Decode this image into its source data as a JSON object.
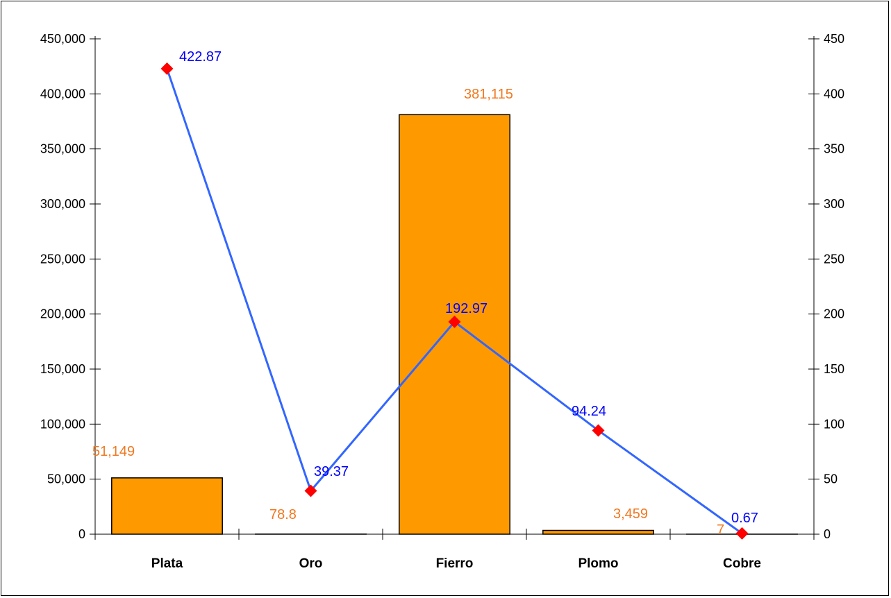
{
  "chart_data": {
    "type": "bar",
    "categories": [
      "Plata",
      "Oro",
      "Fierro",
      "Plomo",
      "Cobre"
    ],
    "series": [
      {
        "type": "bar",
        "axis": "left",
        "values": [
          51149,
          78.8,
          381115,
          3459,
          7
        ],
        "labels": [
          "51,149",
          "78.8",
          "381,115",
          "3,459",
          "7"
        ],
        "color": "#FF9900",
        "label_color": "#F07820"
      },
      {
        "type": "line",
        "axis": "right",
        "values": [
          422.87,
          39.37,
          192.97,
          94.24,
          0.67
        ],
        "labels": [
          "422.87",
          "39.37",
          "192.97",
          "94.24",
          "0.67"
        ],
        "color": "#3366FF",
        "marker_color": "#FF0000",
        "label_color": "#0000FF"
      }
    ],
    "y_left": {
      "ylim": [
        0,
        450000
      ],
      "ticks": [
        "0",
        "50,000",
        "100,000",
        "150,000",
        "200,000",
        "250,000",
        "300,000",
        "350,000",
        "400,000",
        "450,000"
      ]
    },
    "y_right": {
      "ylim": [
        0,
        450
      ],
      "ticks": [
        "0",
        "50",
        "100",
        "150",
        "200",
        "250",
        "300",
        "350",
        "400",
        "450"
      ]
    },
    "grid": false,
    "legend": "none"
  }
}
